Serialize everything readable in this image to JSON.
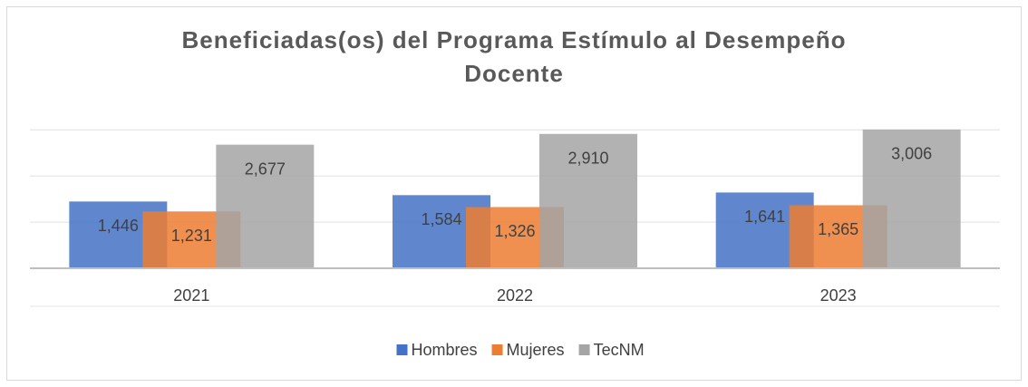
{
  "chart_data": {
    "type": "bar",
    "title": "Beneficiadas(os) del Programa Estímulo al Desempeño Docente",
    "categories": [
      "2021",
      "2022",
      "2023"
    ],
    "series": [
      {
        "name": "Hombres",
        "color": "#4472c4",
        "values": [
          1446,
          1584,
          1641
        ],
        "value_labels": [
          "1,446",
          "1,584",
          "1,641"
        ]
      },
      {
        "name": "Mujeres",
        "color": "#ed7d31",
        "values": [
          1231,
          1326,
          1365
        ],
        "value_labels": [
          "1,231",
          "1,326",
          "1,365"
        ]
      },
      {
        "name": "TecNM",
        "color": "#a5a5a5",
        "values": [
          2677,
          2910,
          3006
        ],
        "value_labels": [
          "2,677",
          "2,910",
          "3,006"
        ]
      }
    ],
    "ylim": [
      0,
      3200
    ],
    "yticks": [
      0,
      1000,
      2000,
      3000
    ],
    "grid": true,
    "legend": "bottom"
  }
}
